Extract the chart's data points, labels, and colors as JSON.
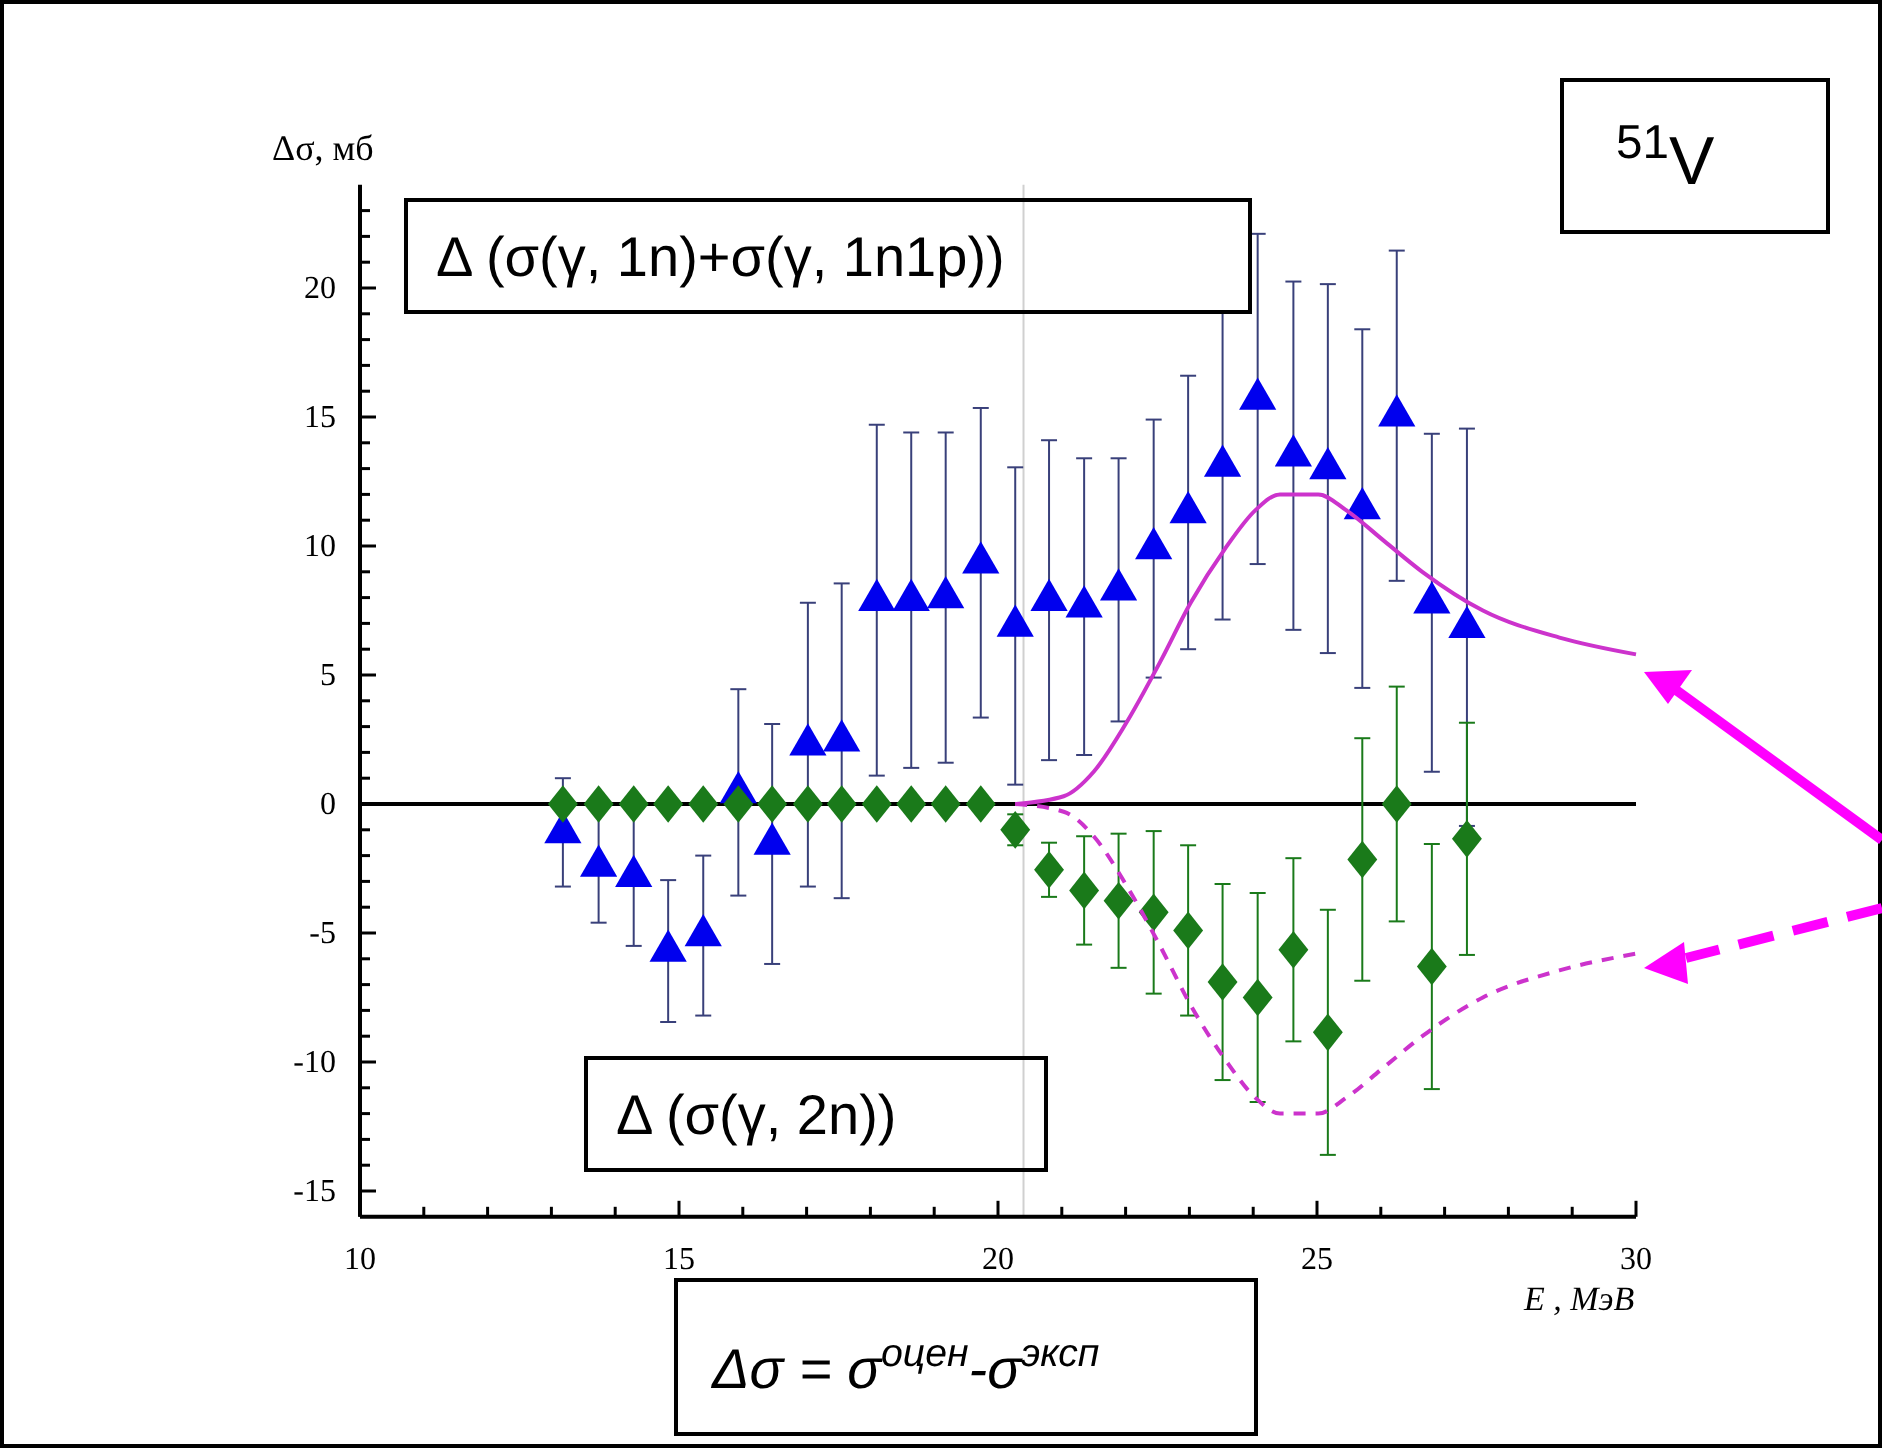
{
  "chart_data": {
    "type": "scatter",
    "xlabel": "E , МэВ",
    "ylabel": "Δσ, мб",
    "annotations": [
      "Δ (σ(γ, 1n)+σ(γ, 1n1p))",
      "Δ (σ(γ, 2n))",
      "$^{51}$V",
      "Δσ = σ$^{оцен}$-σ$^{эксп}$"
    ],
    "xlim": [
      10,
      30
    ],
    "ylim": [
      -16,
      24
    ],
    "xticks": [
      10,
      {
        "value": 11,
        "label": null
      },
      {
        "value": 12,
        "label": null
      },
      {
        "value": 13,
        "label": null
      },
      {
        "value": 14,
        "label": null
      },
      15,
      {
        "value": 16,
        "label": null
      },
      {
        "value": 17,
        "label": null
      },
      {
        "value": 18,
        "label": null
      },
      {
        "value": 19,
        "label": null
      },
      20,
      {
        "value": 21,
        "label": null
      },
      {
        "value": 22,
        "label": null
      },
      {
        "value": 23,
        "label": null
      },
      {
        "value": 24,
        "label": null
      },
      25,
      {
        "value": 26,
        "label": null
      },
      {
        "value": 27,
        "label": null
      },
      {
        "value": 28,
        "label": null
      },
      {
        "value": 29,
        "label": null
      },
      30
    ],
    "yticks": [
      -15,
      {
        "value": -14,
        "label": null
      },
      {
        "value": -13,
        "label": null
      },
      {
        "value": -12,
        "label": null
      },
      {
        "value": -11,
        "label": null
      },
      -10,
      {
        "value": -9,
        "label": null
      },
      {
        "value": -8,
        "label": null
      },
      {
        "value": -7,
        "label": null
      },
      {
        "value": -6,
        "label": null
      },
      -5,
      {
        "value": -4,
        "label": null
      },
      {
        "value": -3,
        "label": null
      },
      {
        "value": -2,
        "label": null
      },
      {
        "value": -1,
        "label": null
      },
      0,
      {
        "value": 1,
        "label": null
      },
      {
        "value": 2,
        "label": null
      },
      {
        "value": 3,
        "label": null
      },
      {
        "value": 4,
        "label": null
      },
      5,
      {
        "value": 6,
        "label": null
      },
      {
        "value": 7,
        "label": null
      },
      {
        "value": 8,
        "label": null
      },
      {
        "value": 9,
        "label": null
      },
      10,
      {
        "value": 11,
        "label": null
      },
      {
        "value": 12,
        "label": null
      },
      {
        "value": 13,
        "label": null
      },
      {
        "value": 14,
        "label": null
      },
      15,
      {
        "value": 16,
        "label": null
      },
      {
        "value": 17,
        "label": null
      },
      {
        "value": 18,
        "label": null
      },
      {
        "value": 19,
        "label": null
      },
      20,
      {
        "value": 21,
        "label": null
      },
      {
        "value": 22,
        "label": null
      },
      {
        "value": 23,
        "label": null
      }
    ],
    "ref_lines": [
      {
        "axis": "y",
        "value": 0,
        "color": "#000000"
      },
      {
        "axis": "x",
        "value": 20.4,
        "color": "#d0d0d0"
      }
    ],
    "series": [
      {
        "marker": "triangle",
        "color": "#0000ee",
        "x": [
          13.18,
          13.74,
          14.29,
          14.83,
          15.38,
          15.93,
          16.46,
          17.02,
          17.55,
          18.1,
          18.64,
          19.18,
          19.73,
          20.27,
          20.8,
          21.35,
          21.89,
          22.44,
          22.98,
          23.52,
          24.07,
          24.63,
          25.17,
          25.71,
          26.25,
          26.8,
          27.35
        ],
        "values": [
          -1.1,
          -2.4,
          -2.8,
          -5.7,
          -5.1,
          0.45,
          -1.55,
          2.3,
          2.45,
          7.9,
          7.9,
          8.0,
          9.35,
          6.9,
          7.9,
          7.65,
          8.3,
          9.9,
          11.3,
          13.1,
          15.7,
          13.5,
          13.0,
          11.45,
          15.05,
          7.8,
          6.85
        ],
        "errors": [
          2.1,
          2.2,
          2.7,
          2.75,
          3.1,
          4,
          4.65,
          5.5,
          6.1,
          6.8,
          6.5,
          6.4,
          6.0,
          6.15,
          6.2,
          5.75,
          5.1,
          5.0,
          5.3,
          5.95,
          6.4,
          6.75,
          7.15,
          6.95,
          6.4,
          6.55,
          7.7
        ]
      },
      {
        "marker": "diamond",
        "color": "#1a7a1a",
        "x": [
          13.18,
          13.74,
          14.29,
          14.83,
          15.38,
          15.93,
          16.46,
          17.02,
          17.55,
          18.1,
          18.64,
          19.18,
          19.73,
          20.27,
          20.8,
          21.35,
          21.89,
          22.44,
          22.98,
          23.52,
          24.07,
          24.63,
          25.17,
          25.71,
          26.25,
          26.8,
          27.35
        ],
        "values": [
          0,
          0,
          0,
          0,
          0,
          0,
          0,
          0,
          0,
          0,
          0,
          0,
          0,
          -1.0,
          -2.55,
          -3.35,
          -3.75,
          -4.2,
          -4.9,
          -6.9,
          -7.5,
          -5.65,
          -8.85,
          -2.15,
          0,
          -6.3,
          -1.35
        ],
        "errors": [
          null,
          null,
          null,
          null,
          null,
          null,
          null,
          null,
          null,
          null,
          null,
          null,
          null,
          0.6,
          1.05,
          2.1,
          2.6,
          3.15,
          3.3,
          3.8,
          4.05,
          3.55,
          4.75,
          4.7,
          4.55,
          4.75,
          4.5
        ]
      },
      {
        "type": "line",
        "line_style": "solid",
        "color": "#cc33cc",
        "x": [
          20.27,
          21.03,
          21.5,
          22.0,
          22.54,
          23.02,
          23.56,
          24.04,
          24.42,
          25.02,
          25.45,
          26.05,
          26.65,
          27.6,
          28.8,
          30
        ],
        "values": [
          0,
          0.3,
          1.25,
          3.1,
          5.5,
          7.8,
          9.9,
          11.4,
          12.0,
          12.0,
          11.4,
          10.2,
          9.0,
          7.5,
          6.45,
          5.8
        ]
      },
      {
        "type": "line",
        "line_style": "dashed",
        "color": "#cc33cc",
        "x": [
          20.27,
          21.03,
          21.5,
          22.0,
          22.54,
          23.02,
          23.56,
          24.04,
          24.42,
          25.02,
          25.45,
          26.05,
          26.65,
          27.6,
          28.8,
          30
        ],
        "values": [
          0,
          -0.3,
          -1.25,
          -3.1,
          -5.5,
          -7.8,
          -9.9,
          -11.4,
          -12.0,
          -12.0,
          -11.4,
          -10.2,
          -9.0,
          -7.5,
          -6.45,
          -5.8
        ]
      }
    ]
  }
}
